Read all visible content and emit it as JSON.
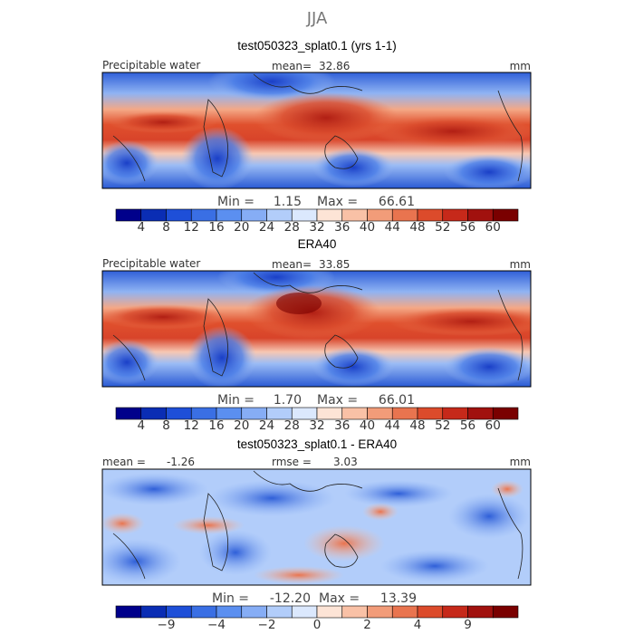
{
  "chart_data": [
    {
      "type": "heatmap",
      "season": "JJA",
      "title": "test050323_splat0.1 (yrs 1-1)",
      "field_label": "Precipitable water",
      "mean_label": "mean=",
      "mean_value": "32.86",
      "units": "mm",
      "min_label": "Min =",
      "min_value": "1.15",
      "max_label": "Max =",
      "max_value": "66.61",
      "colorbar_ticks": [
        "4",
        "8",
        "12",
        "16",
        "20",
        "24",
        "28",
        "32",
        "36",
        "40",
        "44",
        "48",
        "52",
        "56",
        "60"
      ],
      "colorbar_colors": [
        "#00008b",
        "#0a2db4",
        "#1e4fd8",
        "#3a6fe4",
        "#5b8ff0",
        "#86adf5",
        "#b2cdfa",
        "#dbe8fd",
        "#fde4d6",
        "#f9c1a6",
        "#f29c79",
        "#e9744f",
        "#dc4b2b",
        "#c6291a",
        "#a1110e",
        "#7a0000"
      ],
      "data_range": [
        0,
        64
      ]
    },
    {
      "type": "heatmap",
      "title": "ERA40",
      "field_label": "Precipitable water",
      "mean_label": "mean=",
      "mean_value": "33.85",
      "units": "mm",
      "min_label": "Min =",
      "min_value": "1.70",
      "max_label": "Max =",
      "max_value": "66.01",
      "colorbar_ticks": [
        "4",
        "8",
        "12",
        "16",
        "20",
        "24",
        "28",
        "32",
        "36",
        "40",
        "44",
        "48",
        "52",
        "56",
        "60"
      ],
      "colorbar_colors": [
        "#00008b",
        "#0a2db4",
        "#1e4fd8",
        "#3a6fe4",
        "#5b8ff0",
        "#86adf5",
        "#b2cdfa",
        "#dbe8fd",
        "#fde4d6",
        "#f9c1a6",
        "#f29c79",
        "#e9744f",
        "#dc4b2b",
        "#c6291a",
        "#a1110e",
        "#7a0000"
      ],
      "data_range": [
        0,
        64
      ]
    },
    {
      "type": "heatmap",
      "title": "test050323_splat0.1 - ERA40",
      "mean_label": "mean =",
      "mean_value": "-1.26",
      "rmse_label": "rmse =",
      "rmse_value": "3.03",
      "units": "mm",
      "min_label": "Min =",
      "min_value": "-12.20",
      "max_label": "Max =",
      "max_value": "13.39",
      "colorbar_ticks": [
        "-9",
        "-4",
        "-2",
        "0",
        "2",
        "4",
        "9"
      ],
      "colorbar_colors": [
        "#00008b",
        "#0a2db4",
        "#1e4fd8",
        "#3a6fe4",
        "#5b8ff0",
        "#86adf5",
        "#b2cdfa",
        "#dbe8fd",
        "#fde4d6",
        "#f9c1a6",
        "#f29c79",
        "#e9744f",
        "#dc4b2b",
        "#c6291a",
        "#a1110e",
        "#7a0000"
      ],
      "data_range": [
        -12,
        12
      ]
    }
  ]
}
